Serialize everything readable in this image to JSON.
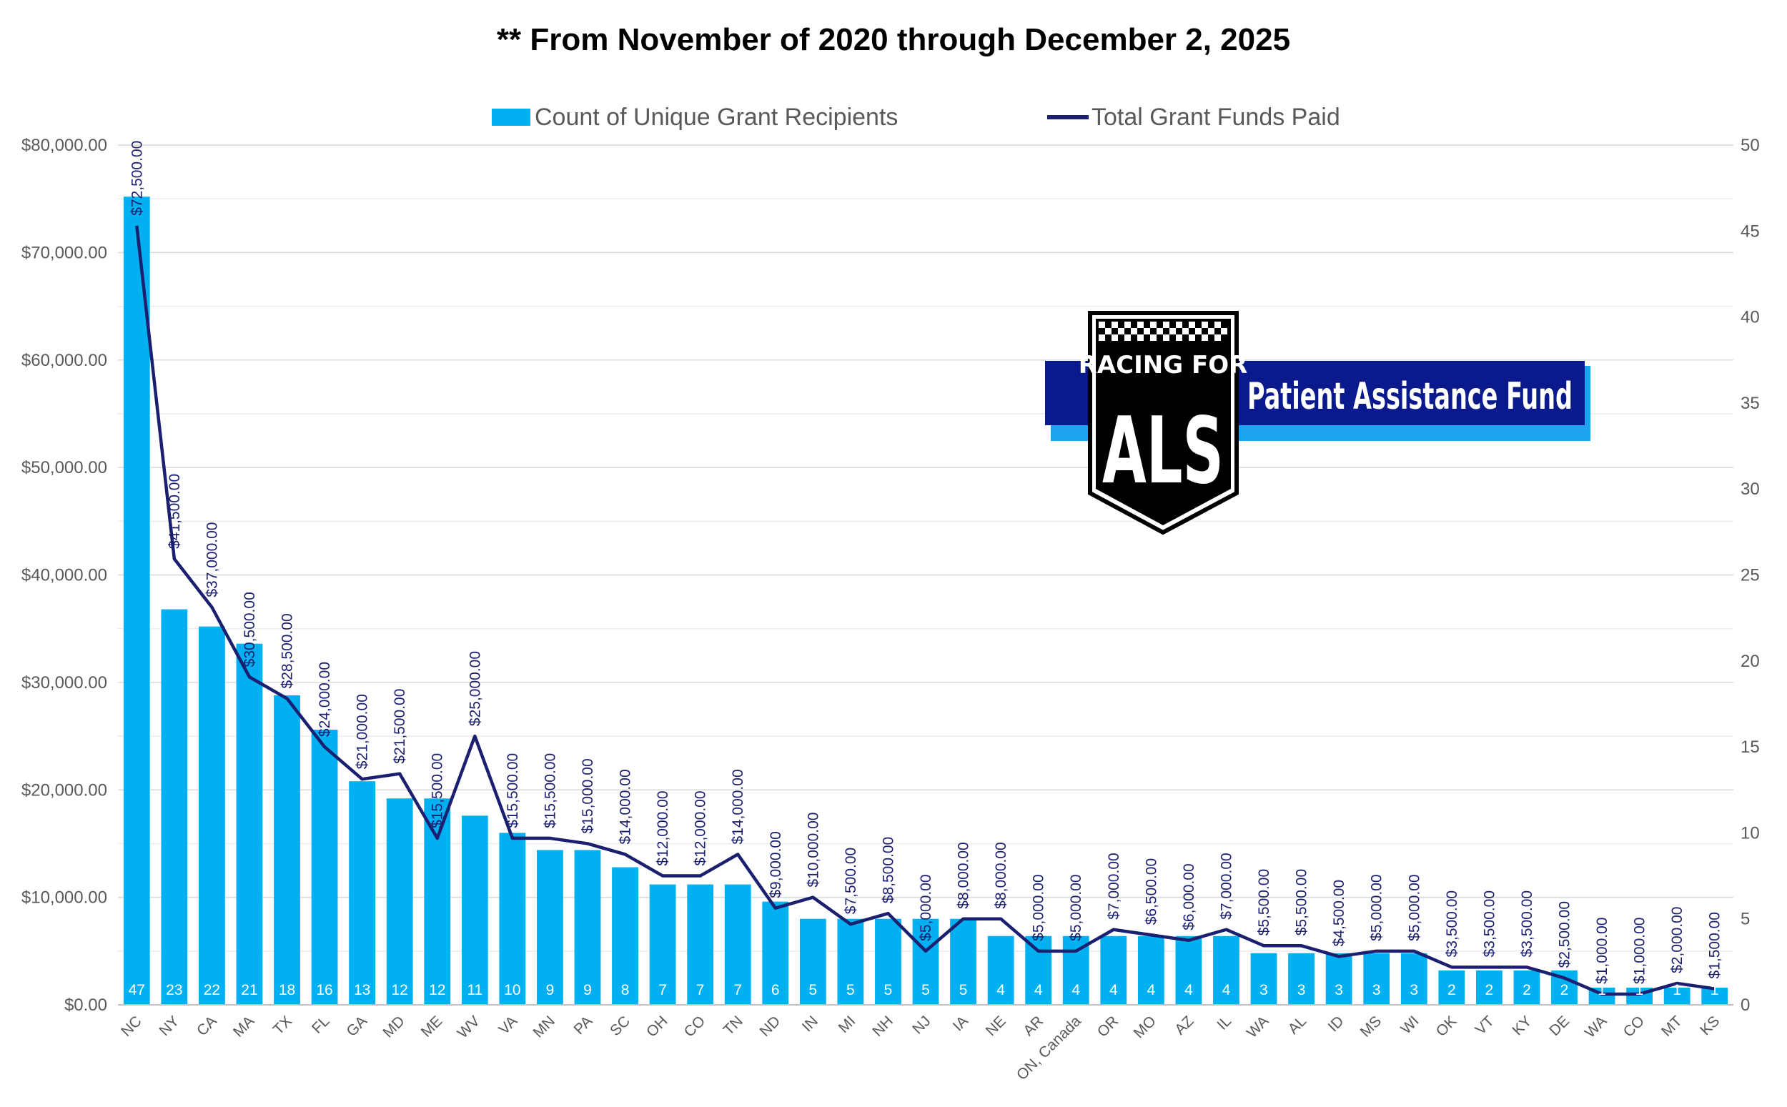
{
  "chart_data": {
    "type": "bar+line",
    "title": "** From November of 2020 through December 2, 2025",
    "legend": {
      "position": "top",
      "bars": "Count of Unique Grant Recipients",
      "line": "Total Grant Funds Paid"
    },
    "categories": [
      "NC",
      "NY",
      "CA",
      "MA",
      "TX",
      "FL",
      "GA",
      "MD",
      "ME",
      "WV",
      "VA",
      "MN",
      "PA",
      "SC",
      "OH",
      "CO",
      "TN",
      "ND",
      "IN",
      "MI",
      "NH",
      "NJ",
      "IA",
      "NE",
      "AR",
      "ON, Canada",
      "OR",
      "MO",
      "AZ",
      "IL",
      "WA",
      "AL",
      "ID",
      "MS",
      "WI",
      "OK",
      "VT",
      "KY",
      "DE",
      "WA",
      "CO",
      "MT",
      "KS"
    ],
    "series": [
      {
        "name": "Count of Unique Grant Recipients",
        "axis": "right",
        "kind": "bar",
        "color": "#00b0f0",
        "values": [
          47,
          23,
          22,
          21,
          18,
          16,
          13,
          12,
          12,
          11,
          10,
          9,
          9,
          8,
          7,
          7,
          7,
          6,
          5,
          5,
          5,
          5,
          5,
          4,
          4,
          4,
          4,
          4,
          4,
          4,
          3,
          3,
          3,
          3,
          3,
          2,
          2,
          2,
          2,
          1,
          1,
          1,
          1
        ],
        "labels": [
          "47",
          "23",
          "22",
          "21",
          "18",
          "16",
          "13",
          "12",
          "12",
          "11",
          "10",
          "9",
          "9",
          "8",
          "7",
          "7",
          "7",
          "6",
          "5",
          "5",
          "5",
          "5",
          "5",
          "4",
          "4",
          "4",
          "4",
          "4",
          "4",
          "4",
          "3",
          "3",
          "3",
          "3",
          "3",
          "2",
          "2",
          "2",
          "2",
          "1",
          "1",
          "1",
          "1"
        ]
      },
      {
        "name": "Total Grant Funds Paid",
        "axis": "left",
        "kind": "line",
        "color": "#1a1f6f",
        "values": [
          72500,
          41500,
          37000,
          30500,
          28500,
          24000,
          21000,
          21500,
          15500,
          25000,
          15500,
          15500,
          15000,
          14000,
          12000,
          12000,
          14000,
          9000,
          10000,
          7500,
          8500,
          5000,
          8000,
          8000,
          5000,
          5000,
          7000,
          6500,
          6000,
          7000,
          5500,
          5500,
          4500,
          5000,
          5000,
          3500,
          3500,
          3500,
          2500,
          1000,
          1000,
          2000,
          1500
        ],
        "labels": [
          "$72,500.00",
          "$41,500.00",
          "$37,000.00",
          "$30,500.00",
          "$28,500.00",
          "$24,000.00",
          "$21,000.00",
          "$21,500.00",
          "$15,500.00",
          "$25,000.00",
          "$15,500.00",
          "$15,500.00",
          "$15,000.00",
          "$14,000.00",
          "$12,000.00",
          "$12,000.00",
          "$14,000.00",
          "$9,000.00",
          "$10,000.00",
          "$7,500.00",
          "$8,500.00",
          "$5,000.00",
          "$8,000.00",
          "$8,000.00",
          "$5,000.00",
          "$5,000.00",
          "$7,000.00",
          "$6,500.00",
          "$6,000.00",
          "$7,000.00",
          "$5,500.00",
          "$5,500.00",
          "$4,500.00",
          "$5,000.00",
          "$5,000.00",
          "$3,500.00",
          "$3,500.00",
          "$3,500.00",
          "$2,500.00",
          "$1,000.00",
          "$1,000.00",
          "$2,000.00",
          "$1,500.00"
        ]
      }
    ],
    "y_left": {
      "range": [
        0,
        80000
      ],
      "ticks": [
        0,
        10000,
        20000,
        30000,
        40000,
        50000,
        60000,
        70000,
        80000
      ],
      "tick_labels": [
        "$0.00",
        "$10,000.00",
        "$20,000.00",
        "$30,000.00",
        "$40,000.00",
        "$50,000.00",
        "$60,000.00",
        "$70,000.00",
        "$80,000.00"
      ]
    },
    "y_right": {
      "range": [
        0,
        50
      ],
      "ticks": [
        0,
        5,
        10,
        15,
        20,
        25,
        30,
        35,
        40,
        45,
        50
      ],
      "tick_labels": [
        "0",
        "5",
        "10",
        "15",
        "20",
        "25",
        "30",
        "35",
        "40",
        "45",
        "50"
      ]
    },
    "grid": true
  },
  "logo": {
    "line1": "RACING FOR",
    "line2": "ALS",
    "banner": "Patient Assistance Fund",
    "colors": {
      "navy": "#0a1a8c",
      "light": "#1ea3f0",
      "black": "#000000"
    }
  }
}
